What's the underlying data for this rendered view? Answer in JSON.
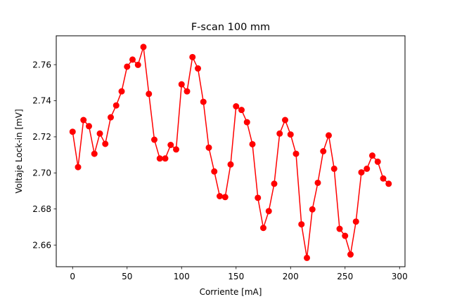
{
  "chart_data": {
    "type": "line",
    "title": "F-scan 100 mm",
    "xlabel": "Corriente [mA]",
    "ylabel": "Voltaje Lock-in [mV]",
    "xlim": [
      -15,
      305
    ],
    "ylim": [
      2.648,
      2.776
    ],
    "xticks": [
      0,
      50,
      100,
      150,
      200,
      250,
      300
    ],
    "xtick_labels": [
      "0",
      "50",
      "100",
      "150",
      "200",
      "250",
      "300"
    ],
    "yticks": [
      2.66,
      2.68,
      2.7,
      2.72,
      2.74,
      2.76
    ],
    "ytick_labels": [
      "2.66",
      "2.68",
      "2.70",
      "2.72",
      "2.74",
      "2.76"
    ],
    "grid": false,
    "series": [
      {
        "name": "F-scan 100 mm",
        "color": "#ff0000",
        "marker": "circle",
        "x": [
          0,
          5,
          10,
          15,
          20,
          25,
          30,
          35,
          40,
          45,
          50,
          55,
          60,
          65,
          70,
          75,
          80,
          85,
          90,
          95,
          100,
          105,
          110,
          115,
          120,
          125,
          130,
          135,
          140,
          145,
          150,
          155,
          160,
          165,
          170,
          175,
          180,
          185,
          190,
          195,
          200,
          205,
          210,
          215,
          220,
          225,
          230,
          235,
          240,
          245,
          250,
          255,
          260,
          265,
          270,
          275,
          280,
          285,
          290
        ],
        "y": [
          2.7228,
          2.7032,
          2.7293,
          2.7259,
          2.7106,
          2.7218,
          2.7161,
          2.7308,
          2.7374,
          2.7452,
          2.7589,
          2.7628,
          2.7599,
          2.7698,
          2.7438,
          2.7184,
          2.708,
          2.708,
          2.7155,
          2.713,
          2.7491,
          2.7452,
          2.7642,
          2.7579,
          2.7394,
          2.714,
          2.7008,
          2.6871,
          2.6866,
          2.7047,
          2.7369,
          2.7349,
          2.7281,
          2.7159,
          2.6862,
          2.6695,
          2.6788,
          2.694,
          2.7218,
          2.7293,
          2.7213,
          2.7106,
          2.6715,
          2.6529,
          2.6798,
          2.6945,
          2.712,
          2.7208,
          2.7023,
          2.669,
          2.6651,
          2.6548,
          2.673,
          2.7003,
          2.7023,
          2.7096,
          2.7062,
          2.6969,
          2.694
        ]
      }
    ]
  }
}
